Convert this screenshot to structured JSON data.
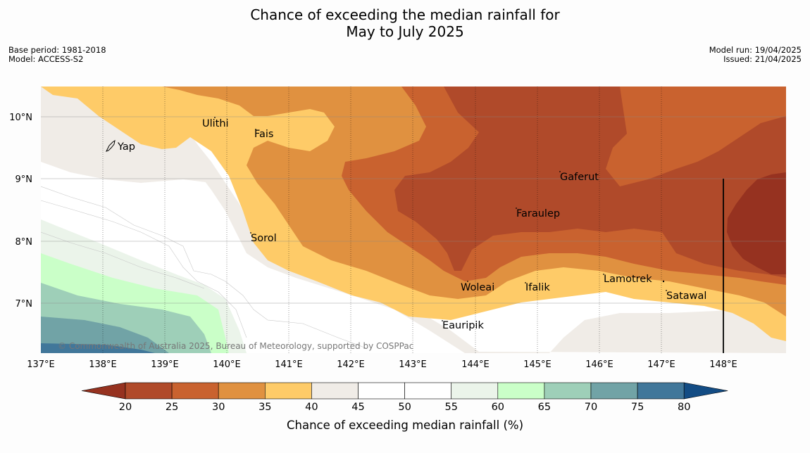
{
  "header": {
    "title_line1": "Chance of exceeding the median rainfall for",
    "title_line2": "May to July 2025",
    "base_period": "Base period: 1981-2018",
    "model": "Model: ACCESS-S2",
    "model_run": "Model run: 19/04/2025",
    "issued": "Issued: 21/04/2025"
  },
  "map": {
    "lon_labels": [
      "137°E",
      "138°E",
      "139°E",
      "140°E",
      "141°E",
      "142°E",
      "143°E",
      "144°E",
      "145°E",
      "146°E",
      "147°E",
      "148°E"
    ],
    "lat_labels": [
      "10°N",
      "9°N",
      "8°N",
      "7°N"
    ],
    "places": [
      "Yap",
      "Ulithi",
      "Fais",
      "Gaferut",
      "Faraulep",
      "Sorol",
      "Woleai",
      "Ifalik",
      "Lamotrek",
      "Satawal",
      "Eauripik"
    ],
    "copyright": "© Commonwealth of Australia 2025, Bureau of Meteorology, supported by COSPPac"
  },
  "colorbar": {
    "ticks": [
      "20",
      "25",
      "30",
      "35",
      "40",
      "45",
      "50",
      "55",
      "60",
      "65",
      "70",
      "75",
      "80"
    ],
    "label": "Chance of exceeding median rainfall (%)",
    "colors": [
      "#963220",
      "#b04a2a",
      "#c9622f",
      "#e09140",
      "#fecb68",
      "#f0ece7",
      "#ffffff",
      "#ffffff",
      "#ebf4ea",
      "#caffc8",
      "#9ecfb8",
      "#71a3a6",
      "#41779a",
      "#134c84"
    ]
  }
}
